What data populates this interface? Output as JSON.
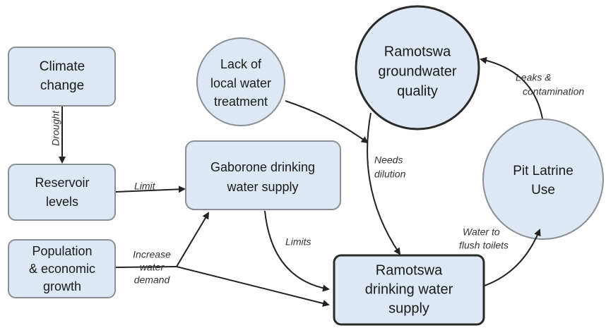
{
  "nodes": [
    {
      "lines": [
        "Climate",
        "change"
      ]
    },
    {
      "lines": [
        "Reservoir",
        "levels"
      ]
    },
    {
      "lines": [
        "Population",
        "& economic",
        "growth"
      ]
    },
    {
      "lines": [
        "Gaborone drinking",
        "water supply"
      ]
    },
    {
      "lines": [
        "Lack of",
        "local water",
        "treatment"
      ]
    },
    {
      "lines": [
        "Ramotswa",
        "groundwater",
        "quality"
      ]
    },
    {
      "lines": [
        "Pit Latrine",
        "Use"
      ]
    },
    {
      "lines": [
        "Ramotswa",
        "drinking water",
        "supply"
      ]
    }
  ],
  "edge_labels": [
    {
      "lines": [
        "Drought"
      ]
    },
    {
      "lines": [
        "Limit"
      ]
    },
    {
      "lines": [
        "Increase",
        "water",
        "demand"
      ]
    },
    {
      "lines": [
        "Limits"
      ]
    },
    {
      "lines": [
        "Needs",
        "dilution"
      ]
    },
    {
      "lines": [
        "Water to",
        "flush toilets"
      ]
    },
    {
      "lines": [
        "Leaks &",
        "contamination"
      ]
    }
  ]
}
